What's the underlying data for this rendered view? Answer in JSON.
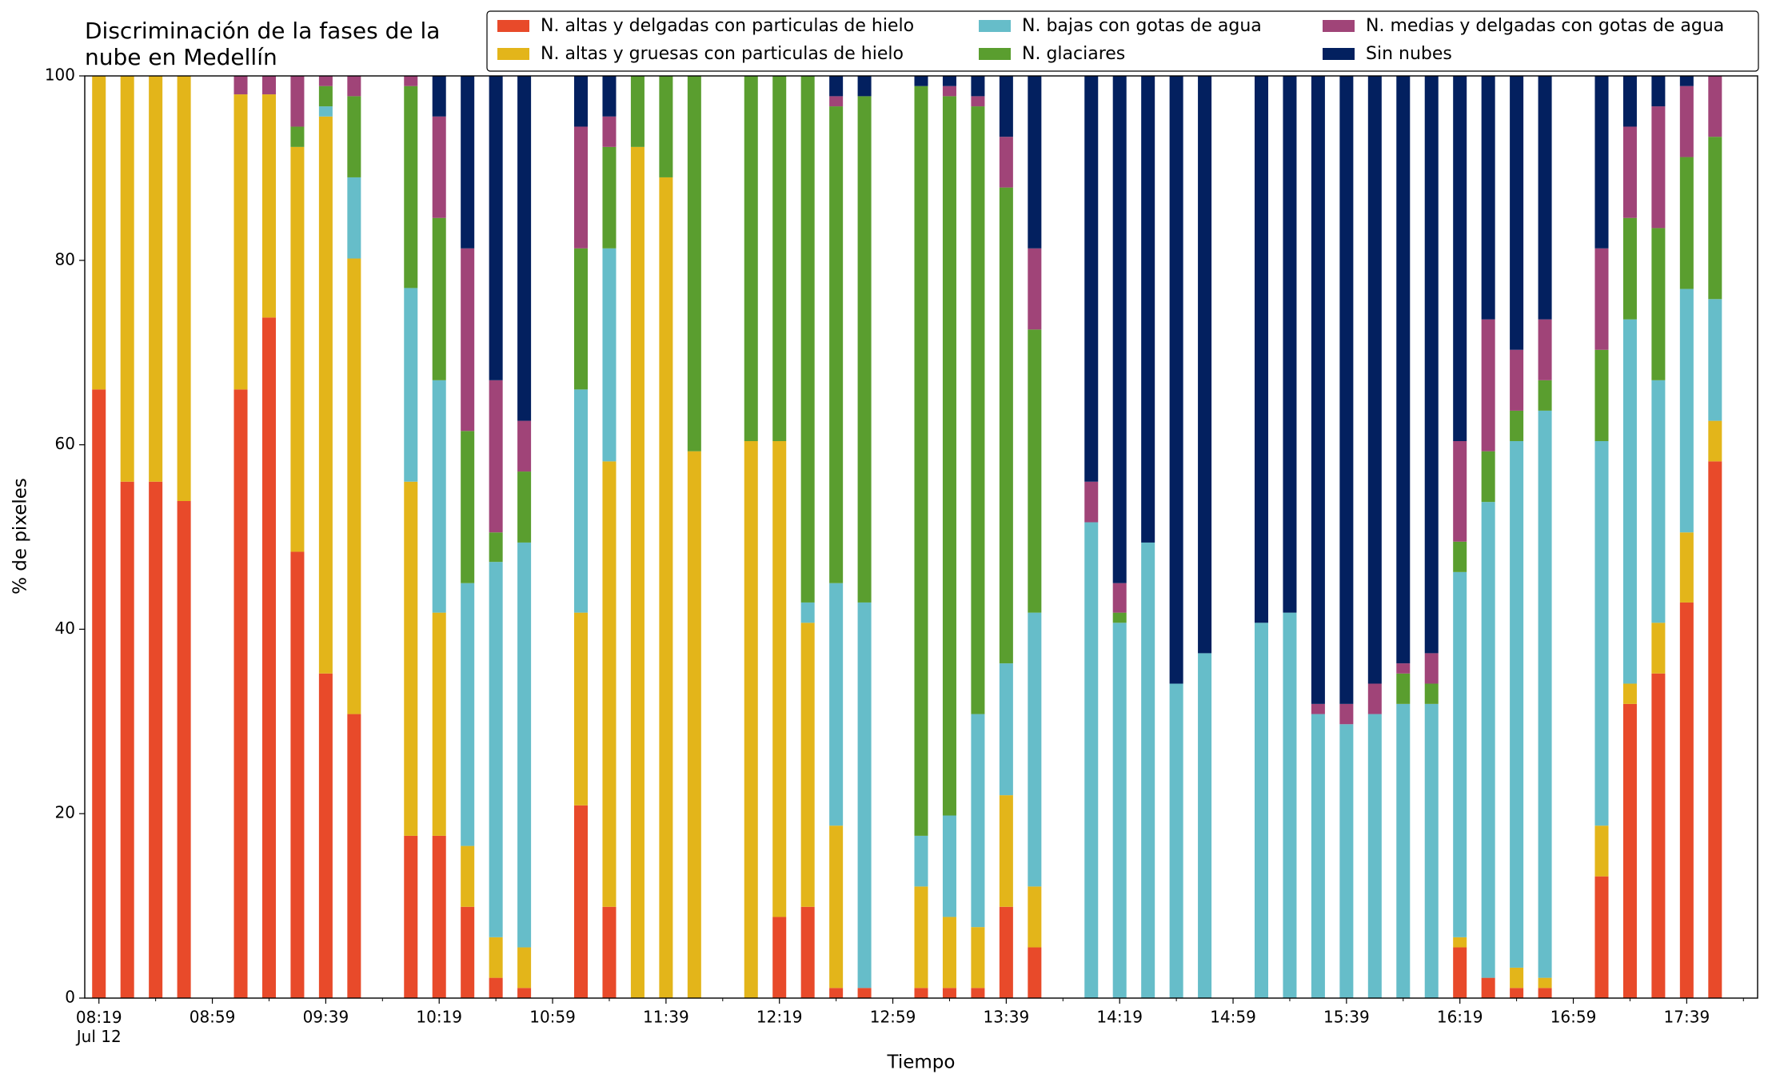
{
  "chart_data": {
    "type": "stacked_bar",
    "title": "Discriminación de la fases de la\nnube en Medellín",
    "xlabel": "Tiempo",
    "ylabel": "% de pixeles",
    "x": [
      "08:19",
      "08:29",
      "08:39",
      "08:49",
      "09:09",
      "09:19",
      "09:29",
      "09:39",
      "09:49",
      "10:09",
      "10:19",
      "10:29",
      "10:39",
      "10:49",
      "11:09",
      "11:19",
      "11:29",
      "11:39",
      "11:49",
      "12:09",
      "12:19",
      "12:29",
      "12:39",
      "12:49",
      "13:09",
      "13:19",
      "13:29",
      "13:39",
      "13:49",
      "14:09",
      "14:19",
      "14:29",
      "14:39",
      "14:49",
      "15:09",
      "15:19",
      "15:29",
      "15:39",
      "15:49",
      "15:59",
      "16:09",
      "16:19",
      "16:29",
      "16:39",
      "16:49",
      "17:09",
      "17:19",
      "17:29",
      "17:39",
      "17:49"
    ],
    "series": [
      {
        "name": "N. altas y delgadas con particulas de hielo",
        "color": "#e84a2a",
        "values": [
          66,
          56,
          56,
          53.9,
          66,
          73.8,
          48.4,
          35.2,
          30.8,
          17.6,
          17.6,
          9.9,
          2.2,
          1.1,
          20.9,
          9.9,
          0,
          0,
          0,
          0,
          8.8,
          9.9,
          1.1,
          1.1,
          1.1,
          1.1,
          1.1,
          9.9,
          5.5,
          0,
          0,
          0,
          0,
          0,
          0,
          0,
          0,
          0,
          0,
          0,
          0,
          5.5,
          2.2,
          1.1,
          1.1,
          13.2,
          31.9,
          35.2,
          42.9,
          58.2
        ]
      },
      {
        "name": "N. altas y gruesas con particulas de hielo",
        "color": "#e3b51a",
        "values": [
          34,
          44,
          44,
          46.1,
          32,
          24.2,
          43.9,
          60.4,
          49.4,
          38.4,
          24.2,
          6.6,
          4.4,
          4.4,
          20.9,
          48.3,
          92.3,
          89,
          59.3,
          60.4,
          51.6,
          30.8,
          17.6,
          0,
          11,
          7.7,
          6.6,
          12.1,
          6.6,
          0,
          0,
          0,
          0,
          0,
          0,
          0,
          0,
          0,
          0,
          0,
          0,
          1.1,
          0,
          2.2,
          1.1,
          5.5,
          2.2,
          5.5,
          7.6,
          4.4
        ]
      },
      {
        "name": "N. bajas con gotas de agua",
        "color": "#66bdc9",
        "values": [
          0,
          0,
          0,
          0,
          0,
          0,
          0,
          1.1,
          8.8,
          21,
          25.2,
          28.5,
          40.7,
          43.9,
          24.2,
          23.1,
          0,
          0,
          0,
          0,
          0,
          2.2,
          26.3,
          41.8,
          5.5,
          11,
          23.1,
          14.3,
          29.7,
          51.6,
          40.7,
          49.4,
          34.1,
          37.4,
          40.7,
          41.8,
          30.8,
          29.7,
          30.8,
          31.9,
          31.9,
          39.6,
          51.6,
          57.1,
          61.5,
          41.7,
          39.5,
          26.3,
          26.4,
          13.2
        ]
      },
      {
        "name": "N. glaciares",
        "color": "#5a9e2f",
        "values": [
          0,
          0,
          0,
          0,
          0,
          0,
          2.2,
          2.2,
          8.8,
          21.9,
          17.6,
          16.5,
          3.2,
          7.7,
          15.3,
          11,
          7.7,
          11,
          40.7,
          39.6,
          39.6,
          57.1,
          51.7,
          54.9,
          81.3,
          78,
          65.9,
          51.6,
          30.7,
          0,
          1.1,
          0,
          0,
          0,
          0,
          0,
          0,
          0,
          0,
          3.3,
          2.2,
          3.3,
          5.5,
          3.3,
          3.3,
          9.9,
          11,
          16.5,
          14.3,
          17.6
        ]
      },
      {
        "name": "N. medias y delgadas con gotas de agua",
        "color": "#a04478",
        "values": [
          0,
          0,
          0,
          0,
          2,
          2,
          5.5,
          1.1,
          2.2,
          1.1,
          11,
          19.8,
          16.5,
          5.5,
          13.2,
          3.3,
          0,
          0,
          0,
          0,
          0,
          0,
          1.1,
          0,
          0,
          1.1,
          1.1,
          5.5,
          8.8,
          4.4,
          3.2,
          0,
          0,
          0,
          0,
          0,
          1.1,
          2.2,
          3.3,
          1.1,
          3.3,
          10.9,
          14.3,
          6.6,
          6.6,
          11,
          9.9,
          13.2,
          7.7,
          6.6
        ]
      },
      {
        "name": "Sin nubes",
        "color": "#03205f",
        "values": [
          0,
          0,
          0,
          0,
          0,
          0,
          0,
          0,
          0,
          0,
          4.4,
          18.7,
          33,
          37.4,
          5.5,
          4.4,
          0,
          0,
          0,
          0,
          0,
          0,
          2.2,
          2.2,
          1.1,
          1.1,
          2.2,
          6.6,
          18.7,
          44,
          55,
          50.6,
          65.9,
          62.6,
          59.3,
          58.2,
          68.1,
          68.1,
          65.9,
          63.7,
          62.6,
          39.6,
          26.4,
          29.7,
          26.4,
          18.7,
          5.5,
          3.3,
          1.1,
          0
        ]
      }
    ],
    "xlim": [
      "08:14",
      "18:04"
    ],
    "xticks": [
      {
        "value": "08:19",
        "label": "08:19\nJul 12"
      },
      "08:59",
      "09:39",
      "10:19",
      "10:59",
      "11:39",
      "12:19",
      "12:59",
      "13:39",
      "14:19",
      "14:59",
      "15:39",
      "16:19",
      "16:59",
      "17:39"
    ],
    "xminorticks": [
      "08:39",
      "09:19",
      "09:59",
      "10:39",
      "11:19",
      "11:59",
      "12:39",
      "13:19",
      "13:59",
      "14:39",
      "15:19",
      "15:59",
      "16:39",
      "17:19",
      "17:59"
    ],
    "ylim": [
      0,
      100
    ],
    "yticks": [
      0,
      20,
      40,
      60,
      80,
      100
    ],
    "grid": false,
    "legend": "upper right",
    "legend_columns": 3
  }
}
